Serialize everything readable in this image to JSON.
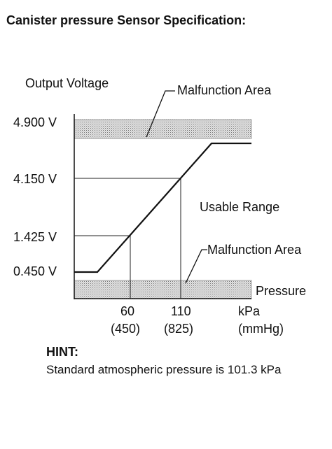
{
  "title": "Canister pressure Sensor Specification:",
  "diagram": {
    "y_axis_label": "Output Voltage",
    "malfunction_area_upper": "Malfunction Area",
    "malfunction_area_lower": "Malfunction Area",
    "usable_range": "Usable Range",
    "pressure_label": "Pressure",
    "y_ticks": [
      "4.900 V",
      "4.150 V",
      "1.425 V",
      "0.450 V"
    ],
    "x_ticks": [
      {
        "value": "60",
        "sub": "(450)"
      },
      {
        "value": "110",
        "sub": "(825)"
      }
    ],
    "x_unit": "kPa",
    "x_unit_sub": "(mmHg)"
  },
  "hint": {
    "heading": "HINT:",
    "text": "Standard atmospheric pressure is 101.3 kPa"
  }
}
